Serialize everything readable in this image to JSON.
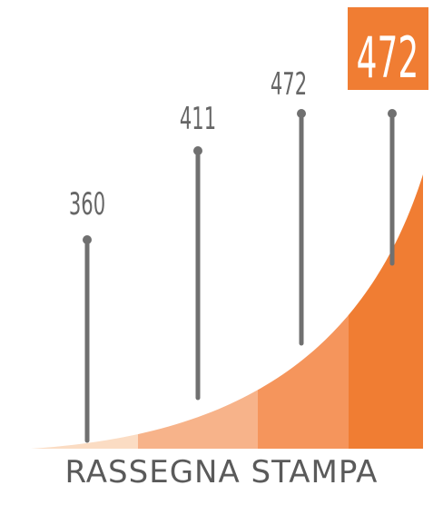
{
  "chart_data": {
    "type": "area",
    "categories": [
      "",
      "",
      "",
      ""
    ],
    "values": [
      360,
      411,
      472,
      472
    ],
    "highlight_value": "472",
    "caption": "RASSEGNA STAMPA",
    "colors": {
      "segments": [
        "#fbdcc3",
        "#f7b38a",
        "#f5955c",
        "#f07d33"
      ],
      "stems": "#707070",
      "labels": "#666666",
      "highlight_box": "#f07d33",
      "highlight_text": "#ffffff"
    }
  }
}
